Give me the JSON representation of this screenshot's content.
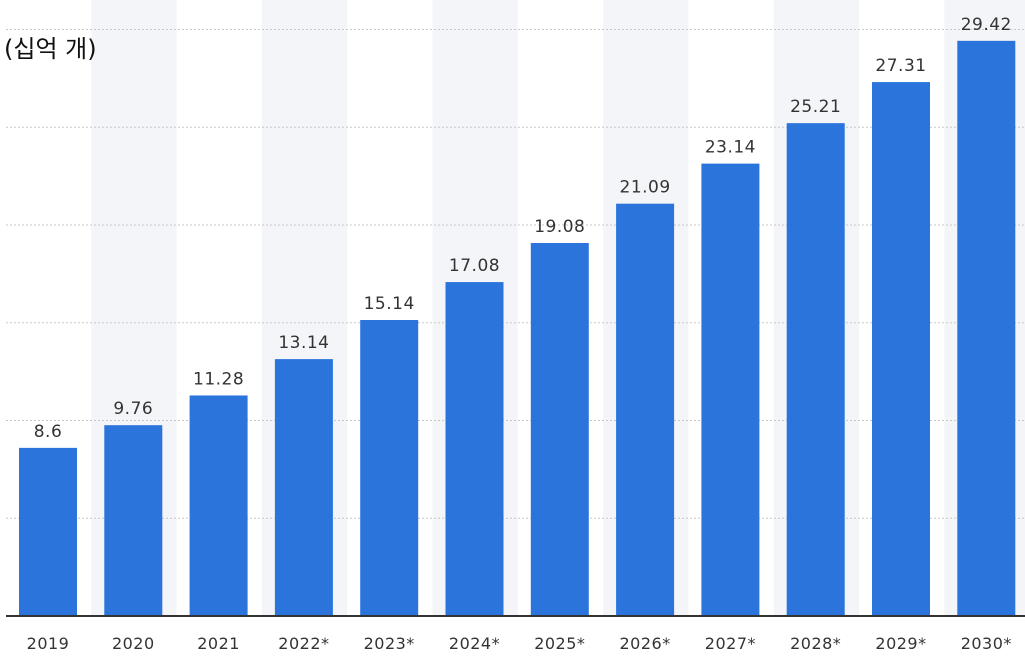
{
  "chart_data": {
    "type": "bar",
    "unit_label": "(십억 개)",
    "categories": [
      "2019",
      "2020",
      "2021",
      "2022*",
      "2023*",
      "2024*",
      "2025*",
      "2026*",
      "2027*",
      "2028*",
      "2029*",
      "2030*"
    ],
    "values": [
      8.6,
      9.76,
      11.28,
      13.14,
      15.14,
      17.08,
      19.08,
      21.09,
      23.14,
      25.21,
      27.31,
      29.42
    ],
    "value_labels": [
      "8.6",
      "9.76",
      "11.28",
      "13.14",
      "15.14",
      "17.08",
      "19.08",
      "21.09",
      "23.14",
      "25.21",
      "27.31",
      "29.42"
    ],
    "ylim": [
      0,
      30
    ],
    "y_gridlines": [
      0,
      5,
      10,
      15,
      20,
      25,
      30
    ],
    "grid": true,
    "legend": "none",
    "colors": {
      "bar": "#2a74dc",
      "band": "#f4f5f8",
      "grid": "#c8c8c8",
      "axis": "#333333"
    }
  }
}
